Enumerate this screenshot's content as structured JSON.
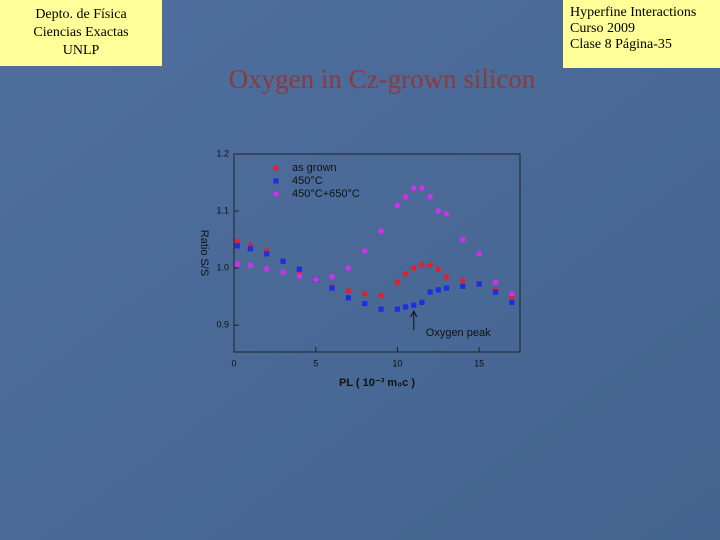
{
  "header": {
    "left": [
      "Depto. de Física",
      "Ciencias Exactas",
      "UNLP"
    ],
    "right": [
      "Hyperfine Interactions",
      "Curso 2009",
      "Clase 8  Página-35"
    ]
  },
  "chart_data": {
    "type": "scatter",
    "title": "Oxygen in Cz-grown silicon",
    "xlabel": "PL ( 10⁻³ m₀c )",
    "ylabel": "Ratio S/S",
    "annotation": "Oxygen peak",
    "legend": "upper left",
    "xlim": [
      0,
      17.5
    ],
    "ylim": [
      0.853,
      1.2
    ],
    "xticks": [
      0,
      5,
      10,
      15
    ],
    "yticks": [
      0.9,
      {
        "value": 1.0,
        "label": "1.0"
      },
      1.1,
      1.2
    ],
    "x": [
      0.2,
      1,
      2,
      3,
      4,
      5,
      6,
      7,
      8,
      9,
      10,
      10.5,
      11,
      11.5,
      12,
      12.5,
      13,
      14,
      15,
      16,
      17
    ],
    "series": [
      {
        "name": "as grown",
        "color": "#e0202a",
        "marker": "circle",
        "values": [
          1.047,
          1.04,
          1.03,
          1.012,
          0.995,
          0.98,
          0.967,
          0.96,
          0.955,
          0.952,
          0.975,
          0.99,
          1.0,
          1.006,
          1.005,
          0.998,
          0.985,
          0.978,
          0.972,
          0.962,
          0.95
        ]
      },
      {
        "name": "450°C",
        "color": "#1c2fe0",
        "marker": "square",
        "values": [
          1.039,
          1.034,
          1.025,
          1.012,
          0.998,
          0.98,
          0.965,
          0.948,
          0.938,
          0.928,
          0.928,
          0.932,
          0.935,
          0.94,
          0.958,
          0.962,
          0.965,
          0.968,
          0.972,
          0.958,
          0.94
        ]
      },
      {
        "name": "450°C+650°C",
        "color": "#d030e8",
        "marker": "circle",
        "values": [
          1.007,
          1.005,
          0.999,
          0.993,
          0.986,
          0.98,
          0.985,
          1.0,
          1.03,
          1.065,
          1.11,
          1.125,
          1.14,
          1.14,
          1.125,
          1.1,
          1.095,
          1.05,
          1.025,
          0.975,
          0.955
        ]
      }
    ]
  }
}
